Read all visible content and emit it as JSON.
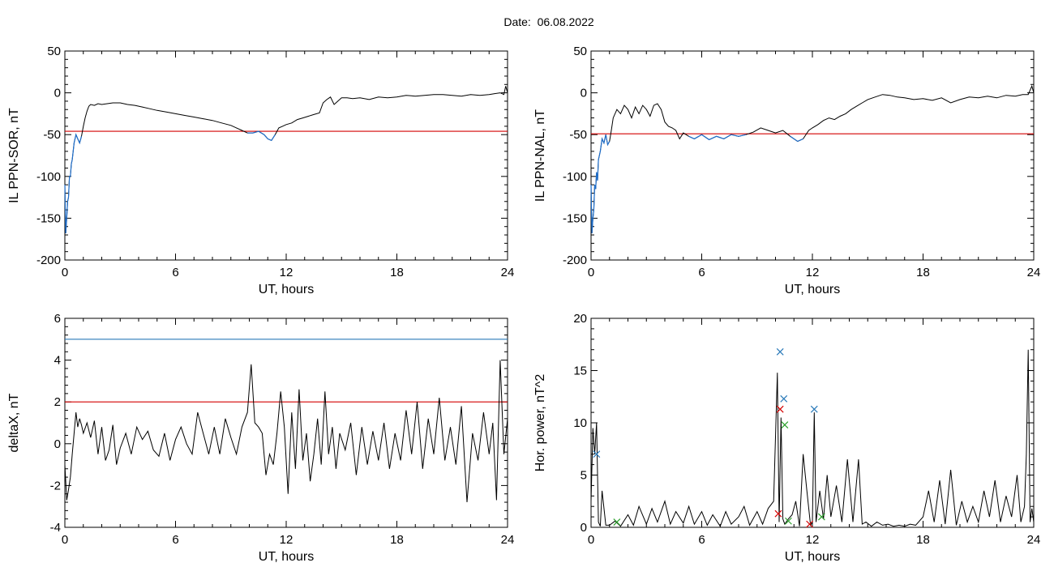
{
  "page": {
    "title": "Date:  06.08.2022"
  },
  "colors": {
    "trace": "#000000",
    "threshold_red": "#d40000",
    "threshold_blue": "#2a7ab9",
    "segment_blue": "#1f6fcc",
    "marker_green": "#2ca02c"
  },
  "chart_data": [
    {
      "type": "line",
      "panel": "top-left",
      "title": "",
      "xlabel": "UT, hours",
      "ylabel": "IL PPN-SOR, nT",
      "xlim": [
        0,
        24
      ],
      "ylim": [
        -200,
        50
      ],
      "x_ticks": [
        "0",
        "6",
        "12",
        "18",
        "24"
      ],
      "y_ticks": [
        "50",
        "0",
        "-50",
        "-100",
        "-150",
        "-200"
      ],
      "threshold": {
        "value": -46,
        "color": "#d40000"
      },
      "below_threshold_color": "#1f6fcc",
      "series": [
        {
          "x": [
            0,
            0.05,
            0.1,
            0.15,
            0.2,
            0.25,
            0.3,
            0.35,
            0.4,
            0.5,
            0.6,
            0.7,
            0.8,
            0.9,
            1.0,
            1.1,
            1.2,
            1.3,
            1.4,
            1.6,
            1.8,
            2.0,
            2.3,
            2.6,
            3.0,
            3.4,
            3.8,
            4.2,
            4.6,
            5.0,
            5.5,
            6.0,
            6.5,
            7.0,
            7.5,
            8.0,
            8.5,
            9.0,
            9.3,
            9.6,
            9.9,
            10.2,
            10.5,
            10.8,
            11.0,
            11.2,
            11.4,
            11.6,
            11.8,
            12.0,
            12.3,
            12.6,
            12.9,
            13.2,
            13.5,
            13.8,
            14.0,
            14.2,
            14.4,
            14.6,
            14.8,
            15.0,
            15.3,
            15.6,
            16.0,
            16.5,
            17.0,
            17.5,
            18.0,
            18.5,
            19.0,
            19.5,
            20.0,
            20.5,
            21.0,
            21.5,
            22.0,
            22.5,
            23.0,
            23.3,
            23.6,
            23.8,
            23.9,
            24.0
          ],
          "y": [
            -110,
            -168,
            -150,
            -130,
            -125,
            -100,
            -100,
            -85,
            -80,
            -60,
            -50,
            -55,
            -60,
            -52,
            -40,
            -30,
            -22,
            -16,
            -14,
            -15,
            -13,
            -14,
            -13,
            -12,
            -12,
            -14,
            -15,
            -17,
            -19,
            -21,
            -23,
            -25,
            -27,
            -29,
            -31,
            -33,
            -36,
            -39,
            -42,
            -45,
            -48,
            -48,
            -46,
            -50,
            -55,
            -57,
            -50,
            -42,
            -40,
            -38,
            -36,
            -32,
            -30,
            -28,
            -26,
            -24,
            -12,
            -8,
            -5,
            -14,
            -10,
            -6,
            -6,
            -7,
            -6,
            -8,
            -5,
            -6,
            -5,
            -3,
            -4,
            -3,
            -2,
            -2,
            -3,
            -4,
            -2,
            -3,
            -2,
            -1,
            0,
            -2,
            8,
            0
          ]
        }
      ]
    },
    {
      "type": "line",
      "panel": "top-right",
      "title": "",
      "xlabel": "UT, hours",
      "ylabel": "IL PPN-NAL, nT",
      "xlim": [
        0,
        24
      ],
      "ylim": [
        -200,
        50
      ],
      "x_ticks": [
        "0",
        "6",
        "12",
        "18",
        "24"
      ],
      "y_ticks": [
        "50",
        "0",
        "-50",
        "-100",
        "-150",
        "-200"
      ],
      "threshold": {
        "value": -49,
        "color": "#d40000"
      },
      "below_threshold_color": "#1f6fcc",
      "series": [
        {
          "x": [
            0,
            0.05,
            0.1,
            0.15,
            0.2,
            0.25,
            0.3,
            0.35,
            0.4,
            0.5,
            0.6,
            0.7,
            0.8,
            0.9,
            1.0,
            1.1,
            1.2,
            1.4,
            1.6,
            1.8,
            2.0,
            2.2,
            2.4,
            2.6,
            2.8,
            3.0,
            3.2,
            3.4,
            3.6,
            3.8,
            4.0,
            4.2,
            4.4,
            4.6,
            4.8,
            5.0,
            5.3,
            5.6,
            6.0,
            6.4,
            6.8,
            7.2,
            7.6,
            8.0,
            8.4,
            8.8,
            9.2,
            9.6,
            10.0,
            10.4,
            10.8,
            11.2,
            11.5,
            11.8,
            12.0,
            12.3,
            12.6,
            12.9,
            13.2,
            13.5,
            13.8,
            14.1,
            14.4,
            14.7,
            15.0,
            15.4,
            15.8,
            16.2,
            16.6,
            17.0,
            17.5,
            18.0,
            18.5,
            19.0,
            19.5,
            20.0,
            20.5,
            21.0,
            21.5,
            22.0,
            22.5,
            23.0,
            23.4,
            23.7,
            23.9,
            24.0
          ],
          "y": [
            -110,
            -168,
            -150,
            -140,
            -110,
            -115,
            -95,
            -105,
            -80,
            -70,
            -55,
            -60,
            -50,
            -62,
            -58,
            -45,
            -30,
            -20,
            -25,
            -15,
            -20,
            -30,
            -17,
            -25,
            -15,
            -20,
            -28,
            -15,
            -13,
            -20,
            -35,
            -40,
            -42,
            -45,
            -55,
            -48,
            -52,
            -55,
            -50,
            -56,
            -52,
            -55,
            -50,
            -52,
            -50,
            -47,
            -42,
            -45,
            -48,
            -45,
            -52,
            -58,
            -55,
            -45,
            -42,
            -38,
            -33,
            -30,
            -32,
            -28,
            -25,
            -20,
            -16,
            -12,
            -8,
            -5,
            -2,
            -3,
            -5,
            -6,
            -8,
            -7,
            -9,
            -6,
            -12,
            -8,
            -5,
            -6,
            -4,
            -6,
            -3,
            -4,
            -2,
            -2,
            8,
            0
          ]
        }
      ]
    },
    {
      "type": "line",
      "panel": "bottom-left",
      "title": "",
      "xlabel": "UT, hours",
      "ylabel": "deltaX, nT",
      "xlim": [
        0,
        24
      ],
      "ylim": [
        -4,
        6
      ],
      "x_ticks": [
        "0",
        "6",
        "12",
        "18",
        "24"
      ],
      "y_ticks": [
        "6",
        "4",
        "2",
        "0",
        "-2",
        "-4"
      ],
      "thresholds": [
        {
          "value": 5,
          "color": "#2a7ab9"
        },
        {
          "value": 2,
          "color": "#d40000"
        }
      ],
      "series": [
        {
          "x": [
            0,
            0.1,
            0.2,
            0.3,
            0.4,
            0.5,
            0.6,
            0.7,
            0.8,
            0.9,
            1.0,
            1.2,
            1.4,
            1.6,
            1.8,
            2.0,
            2.2,
            2.4,
            2.6,
            2.8,
            3.0,
            3.3,
            3.6,
            3.9,
            4.2,
            4.5,
            4.8,
            5.1,
            5.4,
            5.7,
            6.0,
            6.3,
            6.6,
            6.9,
            7.2,
            7.5,
            7.8,
            8.1,
            8.4,
            8.7,
            9.0,
            9.3,
            9.6,
            9.9,
            10.1,
            10.3,
            10.5,
            10.7,
            10.9,
            11.1,
            11.3,
            11.5,
            11.7,
            11.9,
            12.1,
            12.3,
            12.5,
            12.7,
            12.9,
            13.1,
            13.3,
            13.5,
            13.7,
            13.9,
            14.1,
            14.3,
            14.5,
            14.7,
            14.9,
            15.2,
            15.5,
            15.8,
            16.1,
            16.4,
            16.7,
            17.0,
            17.3,
            17.6,
            17.9,
            18.2,
            18.5,
            18.8,
            19.1,
            19.4,
            19.7,
            20.0,
            20.3,
            20.6,
            20.9,
            21.2,
            21.5,
            21.8,
            22.1,
            22.4,
            22.7,
            23.0,
            23.2,
            23.4,
            23.6,
            23.8,
            24.0
          ],
          "y": [
            -1,
            -2.7,
            -2.2,
            -1.6,
            -0.5,
            0.5,
            1.5,
            0.8,
            1.2,
            0.9,
            0.5,
            1,
            0.3,
            1.1,
            -0.5,
            0.8,
            -0.8,
            -0.3,
            0.9,
            -1.0,
            -0.2,
            0.5,
            -0.5,
            0.8,
            0.2,
            0.6,
            -0.3,
            -0.6,
            0.5,
            -0.8,
            0.2,
            0.8,
            0,
            -0.5,
            1.5,
            0.5,
            -0.5,
            0.8,
            -0.5,
            1.2,
            0.3,
            -0.5,
            0.8,
            1.5,
            3.8,
            1.0,
            0.8,
            0.5,
            -1.5,
            -0.5,
            -1.0,
            0.5,
            2.5,
            0.8,
            -2.4,
            1.5,
            -1.2,
            2.6,
            -0.8,
            0.5,
            -1.8,
            -0.5,
            1.2,
            -1.0,
            2.5,
            -0.5,
            0.8,
            -1.2,
            0.5,
            -0.3,
            1.0,
            -1.5,
            0.8,
            -1.0,
            0.6,
            -0.8,
            1.0,
            -1.2,
            0.5,
            -0.8,
            1.6,
            -0.5,
            2.0,
            -1.2,
            1.2,
            -0.5,
            2.2,
            -0.8,
            0.8,
            -1.0,
            1.8,
            -2.8,
            0.5,
            -0.8,
            1.5,
            -0.5,
            1.0,
            -2.7,
            4.0,
            -0.5,
            1.2
          ]
        }
      ]
    },
    {
      "type": "line",
      "panel": "bottom-right",
      "title": "",
      "xlabel": "UT, hours",
      "ylabel": "Hor. power, nT^2",
      "xlim": [
        0,
        24
      ],
      "ylim": [
        0,
        20
      ],
      "x_ticks": [
        "0",
        "6",
        "12",
        "18",
        "24"
      ],
      "y_ticks": [
        "20",
        "15",
        "10",
        "5",
        "0"
      ],
      "series": [
        {
          "x": [
            0,
            0.1,
            0.2,
            0.3,
            0.4,
            0.5,
            0.6,
            0.8,
            1.0,
            1.3,
            1.6,
            2.0,
            2.3,
            2.6,
            3.0,
            3.3,
            3.6,
            4.0,
            4.3,
            4.6,
            5.0,
            5.3,
            5.6,
            6.0,
            6.3,
            6.6,
            7.0,
            7.3,
            7.6,
            8.0,
            8.3,
            8.6,
            9.0,
            9.3,
            9.6,
            9.9,
            10.1,
            10.2,
            10.3,
            10.4,
            10.5,
            10.7,
            10.9,
            11.1,
            11.3,
            11.5,
            11.7,
            11.9,
            12.0,
            12.1,
            12.2,
            12.4,
            12.6,
            12.8,
            13.0,
            13.3,
            13.6,
            13.9,
            14.2,
            14.5,
            14.7,
            14.9,
            15.2,
            15.5,
            15.8,
            16.1,
            16.4,
            16.7,
            17.0,
            17.3,
            17.6,
            18.0,
            18.3,
            18.6,
            18.9,
            19.2,
            19.5,
            19.8,
            20.1,
            20.4,
            20.7,
            21.0,
            21.3,
            21.6,
            21.9,
            22.2,
            22.5,
            22.8,
            23.1,
            23.3,
            23.5,
            23.6,
            23.7,
            23.8,
            23.9,
            24.0
          ],
          "y": [
            2.5,
            9.5,
            7.0,
            10.0,
            0.5,
            0.1,
            3.5,
            0.2,
            0.2,
            0.6,
            0.1,
            1.2,
            0.2,
            2.0,
            0.3,
            1.8,
            0.5,
            2.5,
            0.3,
            1.5,
            0.4,
            2.0,
            0.3,
            1.5,
            0.2,
            1.2,
            0.1,
            1.5,
            0.3,
            1.0,
            2.0,
            0.2,
            1.5,
            0.3,
            1.8,
            2.5,
            14.8,
            0.5,
            10.5,
            0.8,
            0.3,
            0.8,
            1.2,
            2.5,
            0.1,
            7.0,
            3.5,
            0.2,
            0.5,
            11.0,
            0.5,
            3.5,
            0.8,
            5.0,
            1.0,
            4.0,
            0.5,
            6.5,
            0.5,
            6.5,
            0.3,
            0.5,
            0.1,
            0.5,
            0.2,
            0.3,
            0.1,
            0.2,
            0.1,
            0.3,
            0.2,
            1.0,
            3.5,
            0.5,
            4.5,
            0.3,
            5.5,
            0.2,
            2.5,
            0.5,
            2.0,
            0.5,
            3.5,
            1.0,
            4.5,
            0.5,
            3.0,
            1.0,
            5.0,
            0.5,
            2.0,
            7.0,
            17.0,
            0.5,
            1.8,
            0.5
          ]
        }
      ],
      "markers": [
        {
          "x": 10.25,
          "y": 16.8,
          "color": "#2a7ab9"
        },
        {
          "x": 10.45,
          "y": 12.3,
          "color": "#2a7ab9"
        },
        {
          "x": 12.1,
          "y": 11.3,
          "color": "#2a7ab9"
        },
        {
          "x": 10.25,
          "y": 11.3,
          "color": "#d40000"
        },
        {
          "x": 10.15,
          "y": 1.3,
          "color": "#d40000"
        },
        {
          "x": 11.85,
          "y": 0.3,
          "color": "#d40000"
        },
        {
          "x": 10.5,
          "y": 9.8,
          "color": "#2ca02c"
        },
        {
          "x": 1.4,
          "y": 0.5,
          "color": "#2ca02c"
        },
        {
          "x": 10.7,
          "y": 0.6,
          "color": "#2ca02c"
        },
        {
          "x": 12.5,
          "y": 1.0,
          "color": "#2ca02c"
        },
        {
          "x": 0.3,
          "y": 7.0,
          "color": "#2a7ab9"
        }
      ]
    }
  ]
}
